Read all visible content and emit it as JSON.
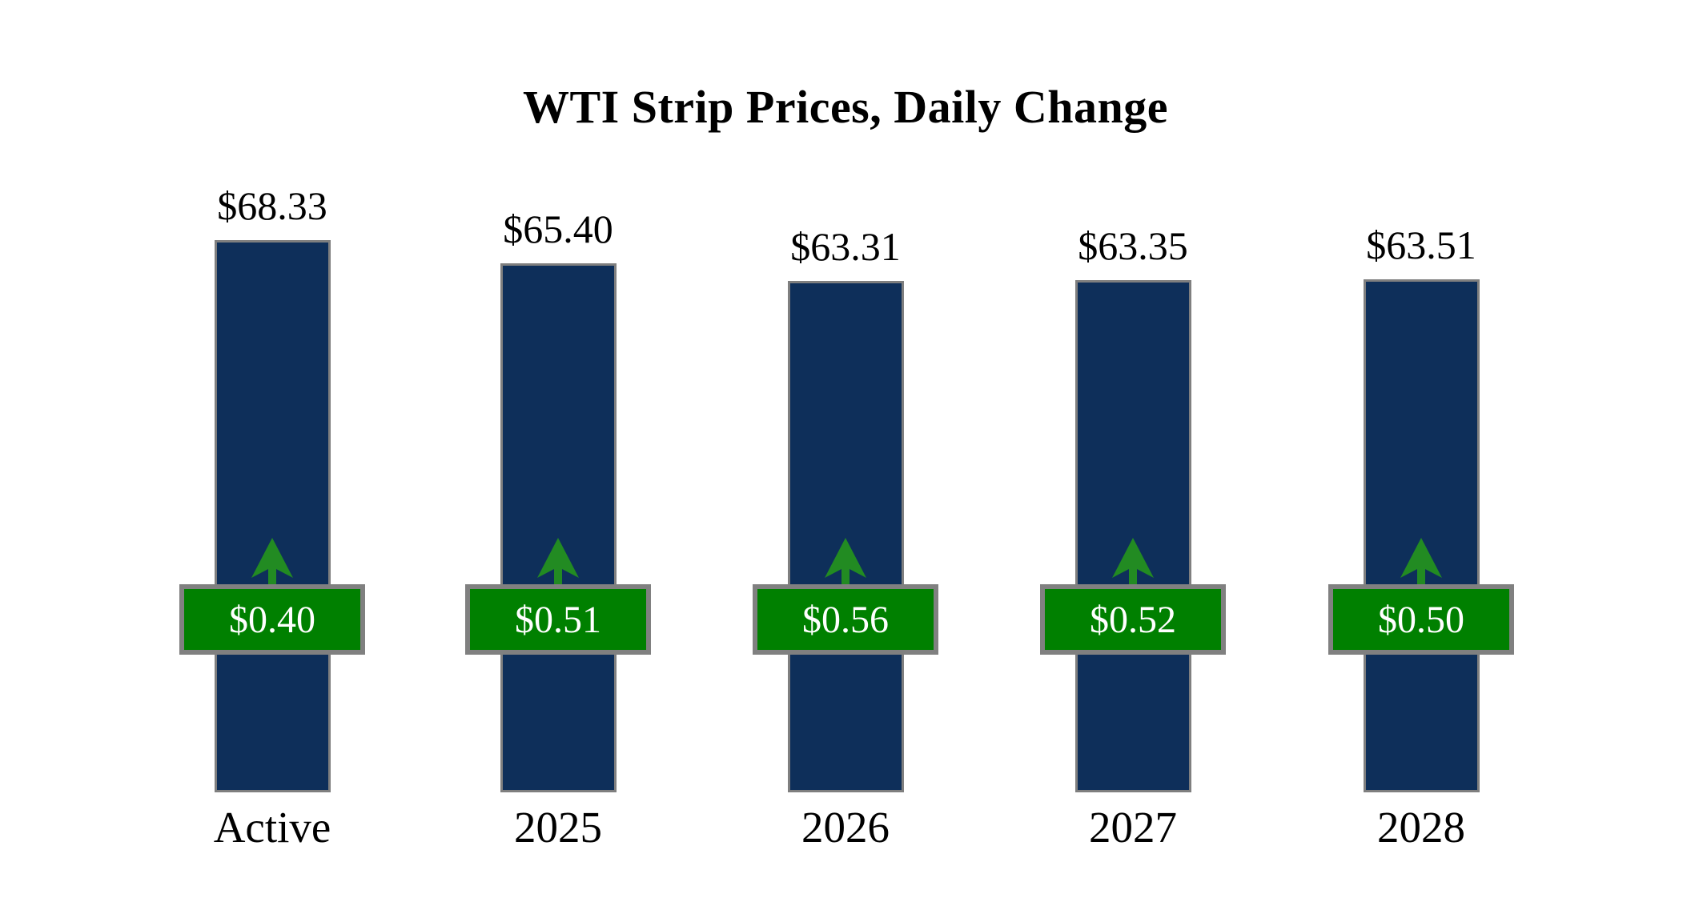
{
  "title": "WTI Strip Prices, Daily Change",
  "colors": {
    "background": "#ffffff",
    "bar_fill": "#0e2f5a",
    "bar_border": "#7f7f7f",
    "badge_fill": "#008000",
    "badge_border": "#808080",
    "badge_text": "#ffffff",
    "arrow": "#228B22",
    "label_text": "#000000"
  },
  "chart_data": {
    "type": "bar",
    "title": "WTI Strip Prices, Daily Change",
    "categories": [
      "Active",
      "2025",
      "2026",
      "2027",
      "2028"
    ],
    "series": [
      {
        "name": "Strip Price",
        "values": [
          68.33,
          65.4,
          63.31,
          63.35,
          63.51
        ],
        "labels": [
          "$68.33",
          "$65.40",
          "$63.31",
          "$63.35",
          "$63.51"
        ]
      },
      {
        "name": "Daily Change",
        "values": [
          0.4,
          0.51,
          0.56,
          0.52,
          0.5
        ],
        "labels": [
          "$0.40",
          "$0.51",
          "$0.56",
          "$0.52",
          "$0.50"
        ],
        "direction": "up"
      }
    ],
    "xlabel": "",
    "ylabel": "",
    "ylim": [
      0,
      68.33
    ],
    "grid": false,
    "legend": "none",
    "annotation_style": "green badge with up arrow centered on each bar shows daily change"
  }
}
